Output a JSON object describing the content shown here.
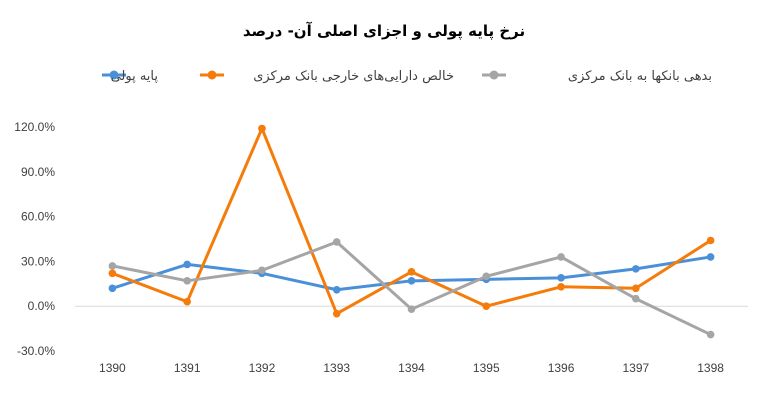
{
  "chart_data": {
    "type": "line",
    "title": "نرخ پایه پولی و اجزای اصلی آن- درصد",
    "xlabel": "",
    "ylabel": "",
    "categories": [
      "1390",
      "1391",
      "1392",
      "1393",
      "1394",
      "1395",
      "1396",
      "1397",
      "1398"
    ],
    "ylim": [
      -30,
      120
    ],
    "yticks": [
      -30,
      0,
      30,
      60,
      90,
      120
    ],
    "ytick_labels": [
      "-30.0%",
      "0.0%",
      "30.0%",
      "60.0%",
      "90.0%",
      "120.0%"
    ],
    "grid": false,
    "legend_position": "top",
    "series": [
      {
        "name": "پایه پولی",
        "color": "#4a90d9",
        "values": [
          12,
          28,
          22,
          11,
          17,
          18,
          19,
          25,
          33
        ]
      },
      {
        "name": "خالص دارایی‌های خارجی بانک مرکزی",
        "color": "#f57c0a",
        "values": [
          22,
          3,
          119,
          -5,
          23,
          0,
          13,
          12,
          44
        ]
      },
      {
        "name": "بدهی بانکها به بانک مرکزی",
        "color": "#a5a5a5",
        "values": [
          27,
          17,
          24,
          43,
          -2,
          20,
          33,
          5,
          -19
        ]
      }
    ]
  }
}
